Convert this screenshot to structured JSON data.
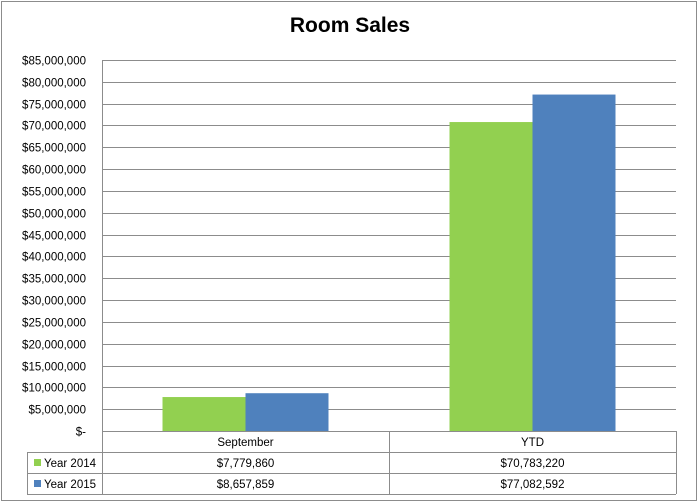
{
  "chart_data": {
    "type": "bar",
    "title": "Room Sales",
    "categories": [
      "September",
      "YTD"
    ],
    "series": [
      {
        "name": "Year 2014",
        "color": "#92d050",
        "values": [
          7779860,
          70783220
        ],
        "labels": [
          "$7,779,860",
          "$70,783,220"
        ]
      },
      {
        "name": "Year 2015",
        "color": "#4f81bd",
        "values": [
          8657859,
          77082592
        ],
        "labels": [
          "$8,657,859",
          "$77,082,592"
        ]
      }
    ],
    "ylim": [
      0,
      85000000
    ],
    "yticks": [
      0,
      5000000,
      10000000,
      15000000,
      20000000,
      25000000,
      30000000,
      35000000,
      40000000,
      45000000,
      50000000,
      55000000,
      60000000,
      65000000,
      70000000,
      75000000,
      80000000,
      85000000
    ],
    "ytick_labels": [
      "$-",
      "$5,000,000",
      "$10,000,000",
      "$15,000,000",
      "$20,000,000",
      "$25,000,000",
      "$30,000,000",
      "$35,000,000",
      "$40,000,000",
      "$45,000,000",
      "$50,000,000",
      "$55,000,000",
      "$60,000,000",
      "$65,000,000",
      "$70,000,000",
      "$75,000,000",
      "$80,000,000",
      "$85,000,000"
    ],
    "grid": true,
    "legend": "data-table",
    "xlabel": "",
    "ylabel": ""
  }
}
